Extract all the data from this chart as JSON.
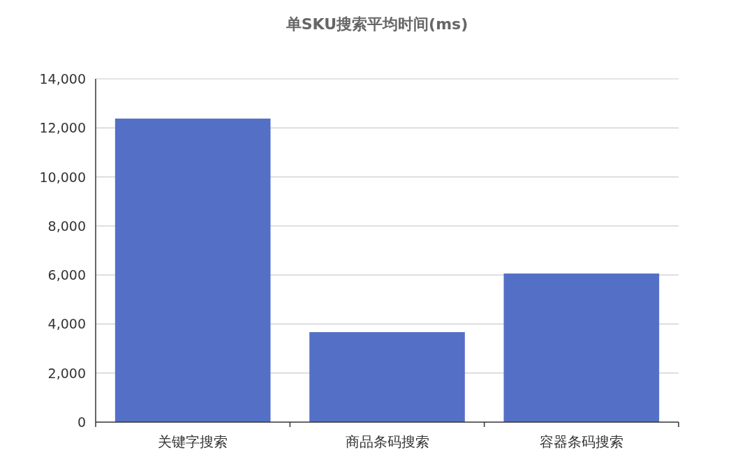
{
  "chart_data": {
    "type": "bar",
    "title": "单SKU搜索平均时间(ms)",
    "categories": [
      "关键字搜索",
      "商品条码搜索",
      "容器条码搜索"
    ],
    "values": [
      12380,
      3670,
      6060
    ],
    "color": "#5470c6",
    "ylim": [
      0,
      14000
    ],
    "yticks": [
      {
        "value": 0,
        "label": "0"
      },
      {
        "value": 2000,
        "label": "2,000"
      },
      {
        "value": 4000,
        "label": "4,000"
      },
      {
        "value": 6000,
        "label": "6,000"
      },
      {
        "value": 8000,
        "label": "8,000"
      },
      {
        "value": 10000,
        "label": "10,000"
      },
      {
        "value": 12000,
        "label": "12,000"
      },
      {
        "value": 14000,
        "label": "14,000"
      }
    ],
    "grid": "y"
  }
}
